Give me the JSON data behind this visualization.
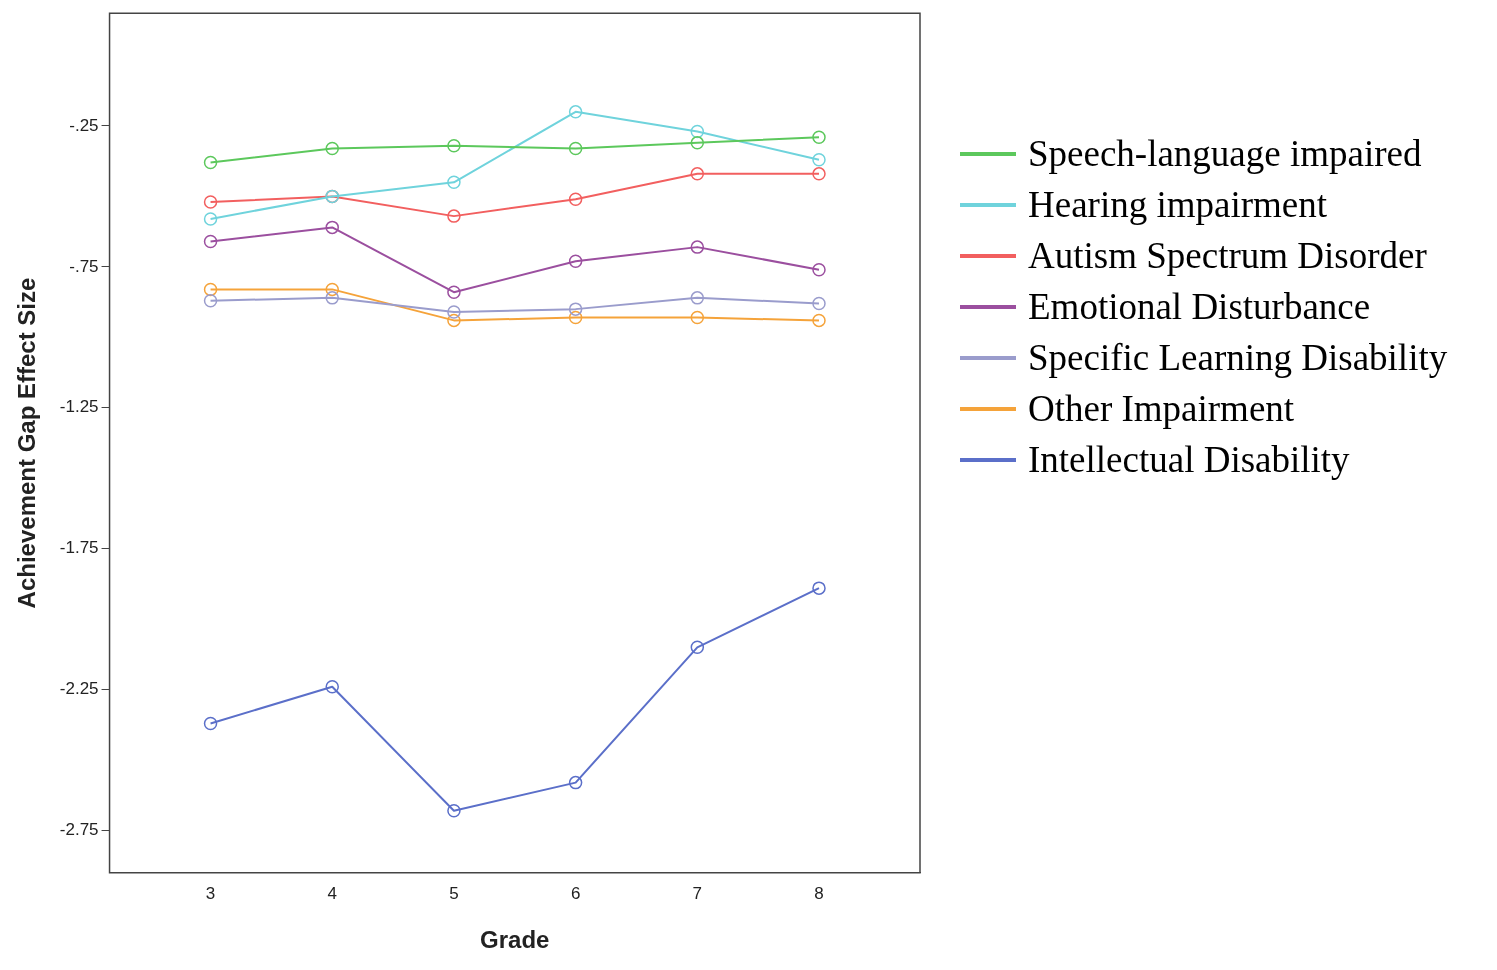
{
  "chart_data": {
    "type": "line",
    "xlabel": "Grade",
    "ylabel": "Achievement Gap Effect Size",
    "x": [
      3,
      4,
      5,
      6,
      7,
      8
    ],
    "xlim": [
      2.17,
      8.83
    ],
    "xticks": [
      3,
      4,
      5,
      6,
      7,
      8
    ],
    "ylim": [
      -2.9,
      0.15
    ],
    "yticks": [
      {
        "value": -0.25,
        "label": "-.25"
      },
      {
        "value": -0.75,
        "label": "-.75"
      },
      {
        "value": -1.25,
        "label": "-1.25"
      },
      {
        "value": -1.75,
        "label": "-1.75"
      },
      {
        "value": -2.25,
        "label": "-2.25"
      },
      {
        "value": -2.75,
        "label": "-2.75"
      }
    ],
    "grid": false,
    "legend": "right",
    "marker": "circle",
    "line_style": "solid",
    "series": [
      {
        "name": "Speech-language impaired",
        "color": "#5cc85c",
        "values": [
          -0.38,
          -0.33,
          -0.32,
          -0.33,
          -0.31,
          -0.29
        ]
      },
      {
        "name": "Hearing impairment",
        "color": "#6fd3dc",
        "values": [
          -0.58,
          -0.5,
          -0.45,
          -0.2,
          -0.27,
          -0.37
        ]
      },
      {
        "name": "Autism Spectrum Disorder",
        "color": "#f25f5f",
        "values": [
          -0.52,
          -0.5,
          -0.57,
          -0.51,
          -0.42,
          -0.42
        ]
      },
      {
        "name": "Emotional Disturbance",
        "color": "#9b4f9f",
        "values": [
          -0.66,
          -0.61,
          -0.84,
          -0.73,
          -0.68,
          -0.76
        ]
      },
      {
        "name": "Specific Learning Disability",
        "color": "#9a9ccc",
        "values": [
          -0.87,
          -0.86,
          -0.91,
          -0.9,
          -0.86,
          -0.88
        ]
      },
      {
        "name": "Other Impairment",
        "color": "#f5a33a",
        "values": [
          -0.83,
          -0.83,
          -0.94,
          -0.93,
          -0.93,
          -0.94
        ]
      },
      {
        "name": "Intellectual Disability",
        "color": "#5b6fc9",
        "values": [
          -2.37,
          -2.24,
          -2.68,
          -2.58,
          -2.1,
          -1.89
        ]
      }
    ]
  }
}
